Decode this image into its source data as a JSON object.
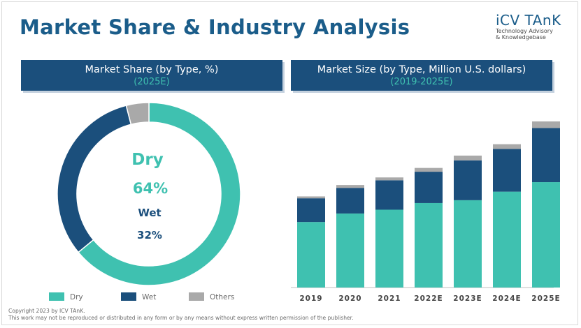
{
  "title": "Market Share & Industry Analysis",
  "logo": {
    "name": "iCV TAnK",
    "tagline": "Technology Advisory\n& Knowledgebase"
  },
  "left_panel": {
    "heading": "Market Share (by Type, %)",
    "subheading": "(2025E)"
  },
  "right_panel": {
    "heading": "Market Size (by Type, Million U.S. dollars)",
    "subheading": "(2019-2025E)"
  },
  "donut_labels": {
    "label1": "Dry",
    "value1": "64%",
    "label2": "Wet",
    "value2": "32%"
  },
  "legend": [
    {
      "label": "Dry",
      "color": "#3fc1b0"
    },
    {
      "label": "Wet",
      "color": "#1b4f7c"
    },
    {
      "label": "Others",
      "color": "#a9a9a9"
    }
  ],
  "colors": {
    "brand": "#1b5d8a",
    "dry": "#3fc1b0",
    "wet": "#1b4f7c",
    "others": "#a9a9a9"
  },
  "footer": {
    "line1": "Copyright  2023 by ICV TAnK.",
    "line2": "This work may not be reproduced or distributed in any form or by any means without express written permission of the publisher."
  },
  "chart_data": [
    {
      "type": "pie",
      "title": "Market Share (by Type, %) (2025E)",
      "categories": [
        "Dry",
        "Wet",
        "Others"
      ],
      "values": [
        64,
        32,
        4
      ],
      "unit": "%"
    },
    {
      "type": "bar",
      "stacked": true,
      "title": "Market Size (by Type, Million U.S. dollars) (2019-2025E)",
      "categories": [
        "2019",
        "2020",
        "2021",
        "2022E",
        "2023E",
        "2024E",
        "2025E"
      ],
      "series": [
        {
          "name": "Dry",
          "values": [
            69,
            78,
            82,
            89,
            92,
            101,
            111
          ]
        },
        {
          "name": "Wet",
          "values": [
            25,
            27,
            31,
            33,
            42,
            45,
            57
          ]
        },
        {
          "name": "Others",
          "values": [
            2,
            3,
            3,
            4,
            5,
            5,
            7
          ]
        }
      ],
      "ylim": [
        0,
        175
      ],
      "xlabel": "",
      "ylabel": ""
    }
  ]
}
